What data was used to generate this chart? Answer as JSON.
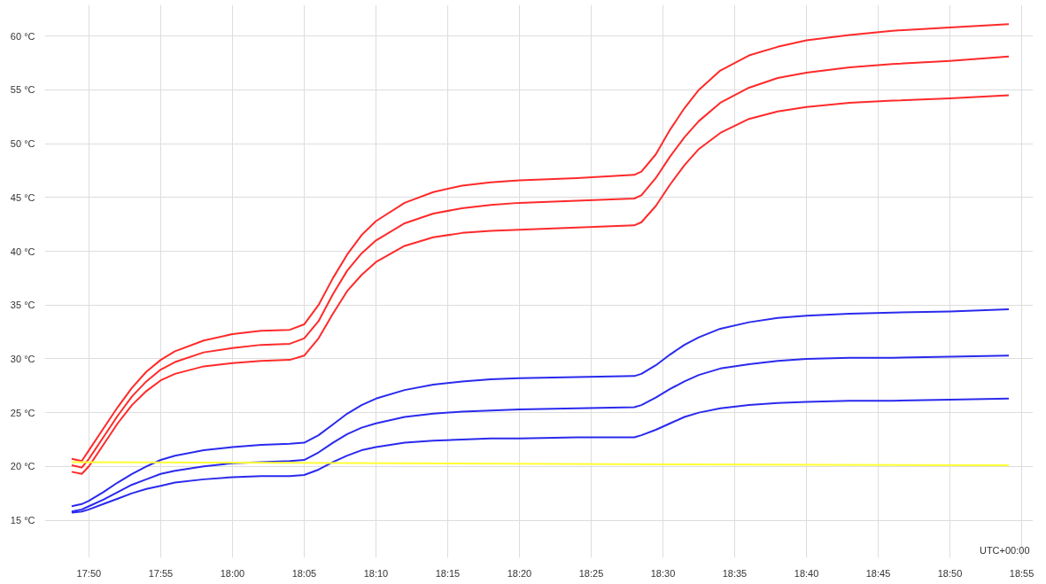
{
  "chart_data": {
    "type": "line",
    "x": [
      17.8133,
      17.825,
      17.8333,
      17.85,
      17.8667,
      17.8833,
      17.9,
      17.9167,
      17.9333,
      17.9667,
      18.0,
      18.0333,
      18.0667,
      18.0833,
      18.1,
      18.1167,
      18.1333,
      18.15,
      18.1667,
      18.2,
      18.2333,
      18.2667,
      18.3,
      18.3333,
      18.4,
      18.4667,
      18.475,
      18.4917,
      18.5083,
      18.525,
      18.5417,
      18.5667,
      18.6,
      18.6333,
      18.6667,
      18.7167,
      18.7667,
      18.8333,
      18.9017
    ],
    "series": [
      {
        "color": "#ff2a2a",
        "values": [
          20.7,
          20.5,
          21.5,
          23.5,
          25.5,
          27.3,
          28.8,
          29.9,
          30.7,
          31.7,
          32.3,
          32.6,
          32.7,
          33.2,
          35,
          37.5,
          39.7,
          41.5,
          42.8,
          44.5,
          45.5,
          46.1,
          46.4,
          46.6,
          46.8,
          47.1,
          47.4,
          49,
          51.3,
          53.3,
          55,
          56.8,
          58.2,
          59.0,
          59.6,
          60.1,
          60.5,
          60.8,
          61.1
        ]
      },
      {
        "color": "#ff2a2a",
        "values": [
          20.1,
          19.9,
          20.7,
          22.7,
          24.7,
          26.5,
          27.9,
          29,
          29.7,
          30.6,
          31.0,
          31.3,
          31.4,
          31.9,
          33.5,
          36,
          38.2,
          39.8,
          41,
          42.6,
          43.5,
          44,
          44.3,
          44.5,
          44.7,
          44.9,
          45.2,
          46.8,
          48.8,
          50.6,
          52.1,
          53.8,
          55.2,
          56.1,
          56.6,
          57.1,
          57.4,
          57.7,
          58.1
        ]
      },
      {
        "color": "#ff2a2a",
        "values": [
          19.5,
          19.3,
          20,
          22,
          24,
          25.7,
          27,
          28,
          28.6,
          29.3,
          29.6,
          29.8,
          29.9,
          30.3,
          31.9,
          34.2,
          36.3,
          37.8,
          39,
          40.5,
          41.3,
          41.7,
          41.9,
          42.0,
          42.2,
          42.4,
          42.7,
          44.2,
          46.2,
          48,
          49.5,
          51,
          52.3,
          53,
          53.4,
          53.8,
          54,
          54.2,
          54.5
        ]
      },
      {
        "color": "#2a2aee",
        "values": [
          16.3,
          16.5,
          16.8,
          17.6,
          18.5,
          19.3,
          20.0,
          20.6,
          21.0,
          21.5,
          21.8,
          22.0,
          22.1,
          22.2,
          22.9,
          23.9,
          24.9,
          25.7,
          26.3,
          27.1,
          27.6,
          27.9,
          28.1,
          28.2,
          28.3,
          28.4,
          28.6,
          29.4,
          30.4,
          31.3,
          32.0,
          32.8,
          33.4,
          33.8,
          34.0,
          34.2,
          34.3,
          34.4,
          34.6
        ]
      },
      {
        "color": "#2a2aee",
        "values": [
          15.8,
          16.0,
          16.3,
          16.9,
          17.6,
          18.3,
          18.8,
          19.3,
          19.6,
          20.0,
          20.3,
          20.4,
          20.5,
          20.6,
          21.3,
          22.2,
          23.0,
          23.6,
          24.0,
          24.6,
          24.9,
          25.1,
          25.2,
          25.3,
          25.4,
          25.5,
          25.7,
          26.4,
          27.2,
          27.9,
          28.5,
          29.1,
          29.5,
          29.8,
          30.0,
          30.1,
          30.1,
          30.2,
          30.3
        ]
      },
      {
        "color": "#2a2aee",
        "values": [
          15.7,
          15.8,
          16.0,
          16.5,
          17.0,
          17.5,
          17.9,
          18.2,
          18.5,
          18.8,
          19.0,
          19.1,
          19.1,
          19.2,
          19.7,
          20.4,
          21.0,
          21.5,
          21.8,
          22.2,
          22.4,
          22.5,
          22.6,
          22.6,
          22.7,
          22.7,
          22.9,
          23.4,
          24.0,
          24.6,
          25.0,
          25.4,
          25.7,
          25.9,
          26.0,
          26.1,
          26.1,
          26.2,
          26.3
        ]
      },
      {
        "color": "#ffff33",
        "x": [
          17.8133,
          18.5,
          18.9017
        ],
        "values": [
          20.4,
          20.2,
          20.1
        ]
      }
    ],
    "xlim": [
      17.782,
      18.93
    ],
    "xticks": [
      {
        "value": 17.8333,
        "label": "17:50"
      },
      {
        "value": 17.9167,
        "label": "17:55"
      },
      {
        "value": 18.0,
        "label": "18:00"
      },
      {
        "value": 18.0833,
        "label": "18:05"
      },
      {
        "value": 18.1667,
        "label": "18:10"
      },
      {
        "value": 18.25,
        "label": "18:15"
      },
      {
        "value": 18.3333,
        "label": "18:20"
      },
      {
        "value": 18.4167,
        "label": "18:25"
      },
      {
        "value": 18.5,
        "label": "18:30"
      },
      {
        "value": 18.5833,
        "label": "18:35"
      },
      {
        "value": 18.6667,
        "label": "18:40"
      },
      {
        "value": 18.75,
        "label": "18:45"
      },
      {
        "value": 18.8333,
        "label": "18:50"
      },
      {
        "value": 18.9167,
        "label": "18:55"
      }
    ],
    "ylim": [
      11.5,
      62.9
    ],
    "yticks": [
      {
        "value": 15,
        "label": "15 °C"
      },
      {
        "value": 20,
        "label": "20 °C"
      },
      {
        "value": 25,
        "label": "25 °C"
      },
      {
        "value": 30,
        "label": "30 °C"
      },
      {
        "value": 35,
        "label": "35 °C"
      },
      {
        "value": 40,
        "label": "40 °C"
      },
      {
        "value": 45,
        "label": "45 °C"
      },
      {
        "value": 50,
        "label": "50 °C"
      },
      {
        "value": 55,
        "label": "55 °C"
      },
      {
        "value": 60,
        "label": "60 °C"
      }
    ],
    "grid": true,
    "marker": "none",
    "line_style": "solid",
    "annotations": [
      "UTC+00:00"
    ]
  }
}
